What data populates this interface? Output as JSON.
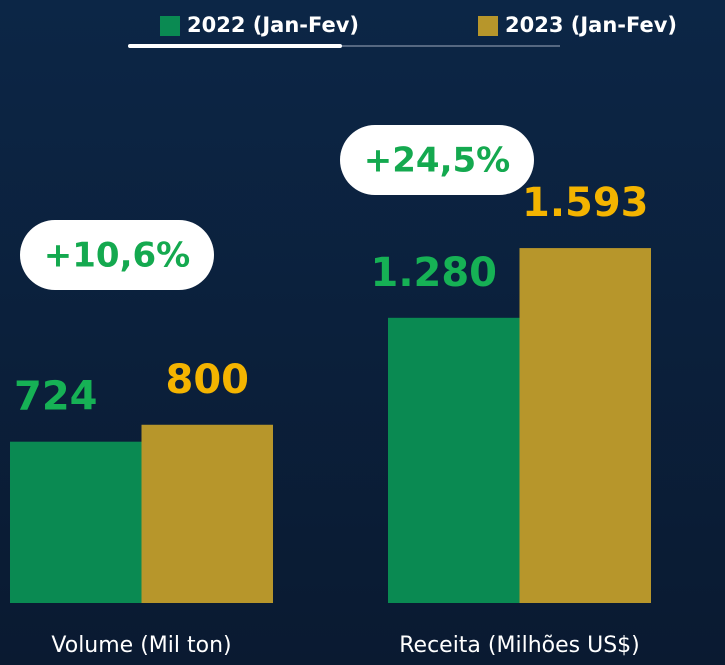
{
  "chart_data": {
    "type": "bar",
    "categories": [
      "Volume (Mil ton)",
      "Receita (Milhões US$)"
    ],
    "series": [
      {
        "name": "2022 (Jan-Fev)",
        "color": "#0a8a52",
        "label_color": "#16b155",
        "values": [
          724,
          1280
        ],
        "value_labels": [
          "724",
          "1.280"
        ]
      },
      {
        "name": "2023 (Jan-Fev)",
        "color": "#b7962b",
        "label_color": "#f4b400",
        "values": [
          800,
          1593
        ],
        "value_labels": [
          "800",
          "1.593"
        ]
      }
    ],
    "annotations": [
      "+10,6%",
      "+24,5%"
    ]
  }
}
